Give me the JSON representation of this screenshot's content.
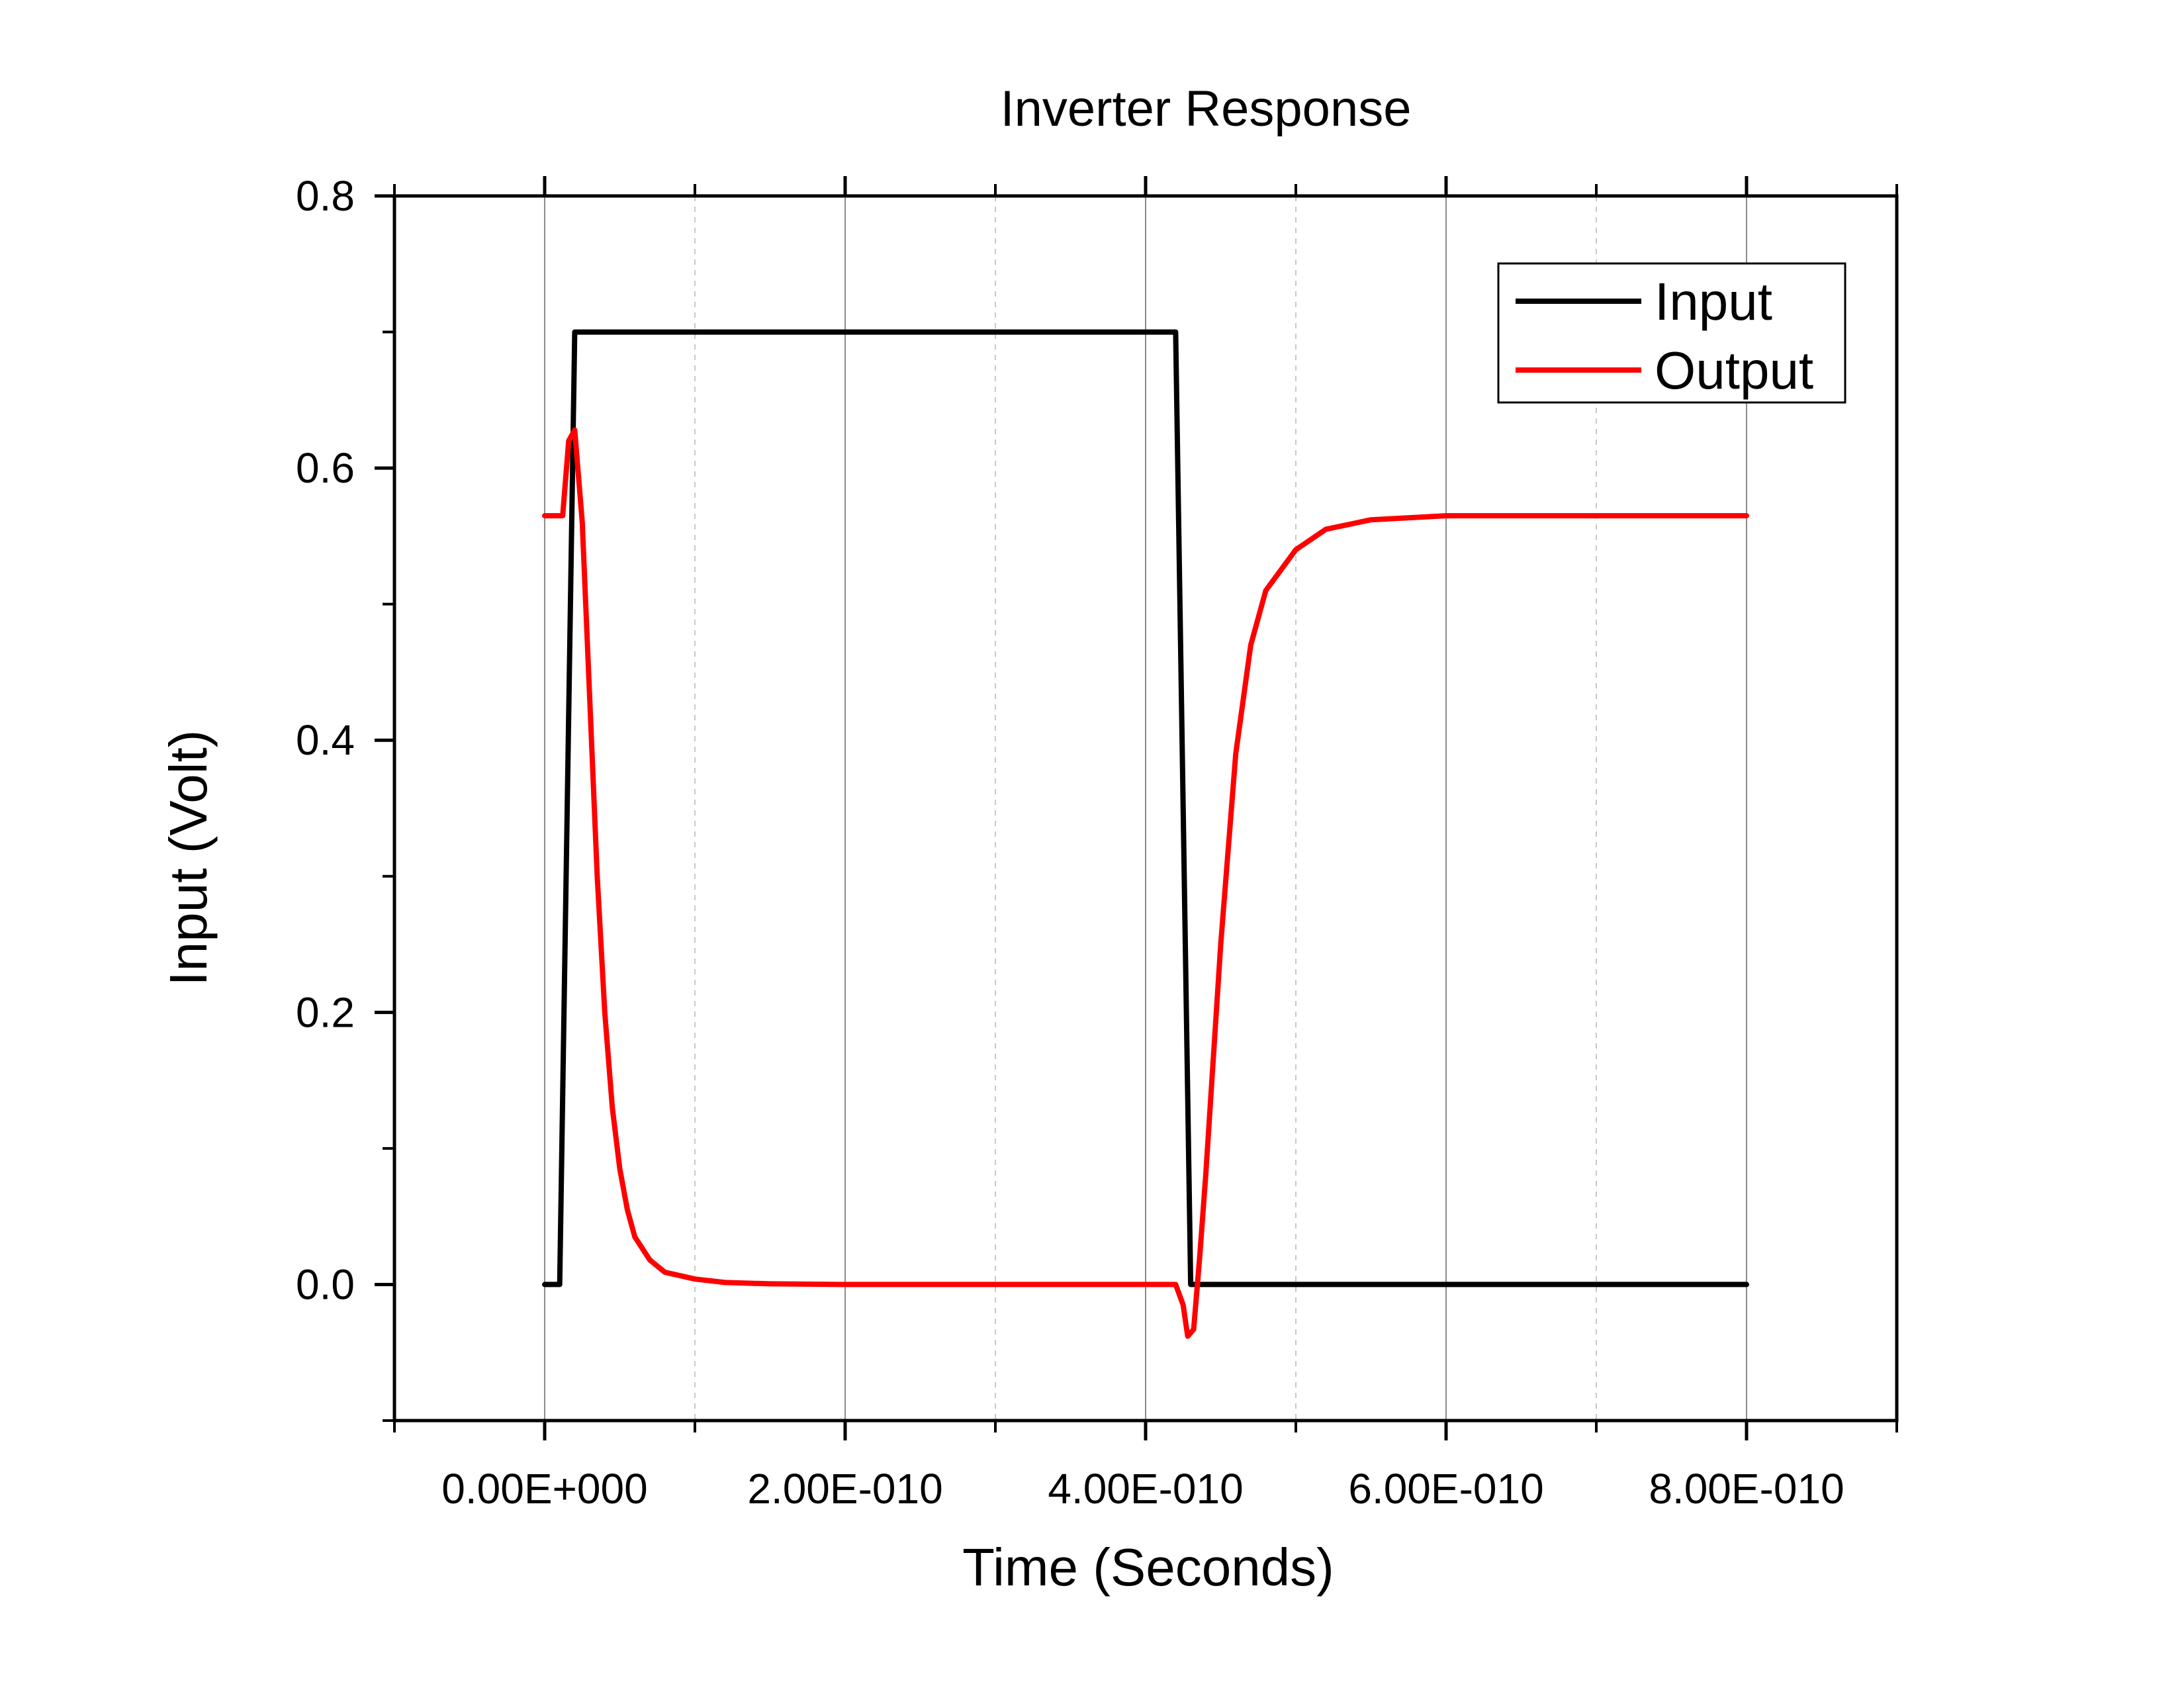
{
  "chart_data": {
    "type": "line",
    "title": "Inverter Response",
    "xlabel": "Time (Seconds)",
    "ylabel": "Input (Volt)",
    "xlim": [
      -1e-10,
      9e-10
    ],
    "ylim": [
      -0.1,
      0.8
    ],
    "x_ticks": [
      0,
      2e-10,
      4e-10,
      6e-10,
      8e-10
    ],
    "x_tick_labels": [
      "0.00E+000",
      "2.00E-010",
      "4.00E-010",
      "6.00E-010",
      "8.00E-010"
    ],
    "x_minor_ticks": [
      -1e-10,
      1e-10,
      3e-10,
      5e-10,
      7e-10,
      9e-10
    ],
    "y_ticks": [
      0.0,
      0.2,
      0.4,
      0.6,
      0.8
    ],
    "y_tick_labels": [
      "0.0",
      "0.2",
      "0.4",
      "0.6",
      "0.8"
    ],
    "y_minor_ticks": [
      -0.1,
      0.1,
      0.3,
      0.5,
      0.7
    ],
    "grid": true,
    "legend_position": "top-right",
    "series": [
      {
        "name": "Input",
        "color": "#000000",
        "points": [
          [
            0,
            0
          ],
          [
            1e-11,
            0
          ],
          [
            2e-11,
            0.7
          ],
          [
            4.2e-10,
            0.7
          ],
          [
            4.3e-10,
            0
          ],
          [
            8e-10,
            0
          ]
        ]
      },
      {
        "name": "Output",
        "color": "#ff0000",
        "points": [
          [
            0,
            0.565
          ],
          [
            1.2e-11,
            0.565
          ],
          [
            1.6e-11,
            0.62
          ],
          [
            2e-11,
            0.628
          ],
          [
            2.5e-11,
            0.56
          ],
          [
            3e-11,
            0.43
          ],
          [
            3.5e-11,
            0.3
          ],
          [
            4e-11,
            0.2
          ],
          [
            4.5e-11,
            0.13
          ],
          [
            5e-11,
            0.085
          ],
          [
            5.5e-11,
            0.055
          ],
          [
            6e-11,
            0.035
          ],
          [
            7e-11,
            0.018
          ],
          [
            8e-11,
            0.009
          ],
          [
            1e-10,
            0.004
          ],
          [
            1.2e-10,
            0.0015
          ],
          [
            1.5e-10,
            0.0005
          ],
          [
            2e-10,
            0.0
          ],
          [
            4.2e-10,
            0.0
          ],
          [
            4.25e-10,
            -0.015
          ],
          [
            4.28e-10,
            -0.038
          ],
          [
            4.32e-10,
            -0.033
          ],
          [
            4.36e-10,
            0.02
          ],
          [
            4.4e-10,
            0.08
          ],
          [
            4.5e-10,
            0.25
          ],
          [
            4.6e-10,
            0.39
          ],
          [
            4.7e-10,
            0.47
          ],
          [
            4.8e-10,
            0.51
          ],
          [
            5e-10,
            0.54
          ],
          [
            5.2e-10,
            0.555
          ],
          [
            5.5e-10,
            0.562
          ],
          [
            6e-10,
            0.565
          ],
          [
            8e-10,
            0.565
          ]
        ]
      }
    ]
  }
}
